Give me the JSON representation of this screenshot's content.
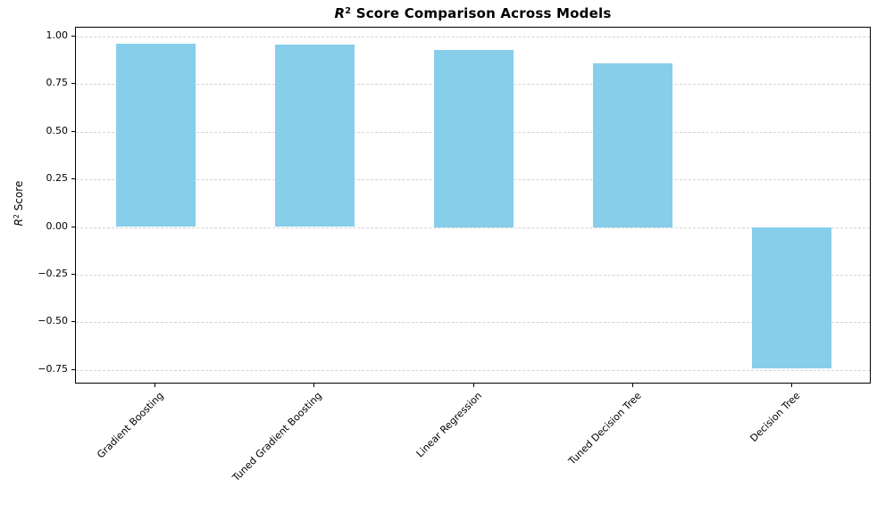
{
  "chart_data": {
    "type": "bar",
    "title": "R² Score Comparison Across Models",
    "title_parts": {
      "var": "R",
      "sup": "2",
      "rest": " Score Comparison Across Models"
    },
    "ylabel": "R² Score",
    "ylabel_parts": {
      "var": "R",
      "sup": "2",
      "rest": " Score"
    },
    "xlabel": "",
    "categories": [
      "Gradient Boosting",
      "Tuned Gradient Boosting",
      "Linear Regression",
      "Tuned Decision Tree",
      "Decision Tree"
    ],
    "values": [
      0.96,
      0.955,
      0.93,
      0.86,
      -0.74
    ],
    "yticks": [
      1.0,
      0.75,
      0.5,
      0.25,
      0.0,
      -0.25,
      -0.5,
      -0.75
    ],
    "ytick_labels": [
      "1.00",
      "0.75",
      "0.50",
      "0.25",
      "0.00",
      "−0.25",
      "−0.50",
      "−0.75"
    ],
    "ylim": [
      -0.825,
      1.045
    ],
    "bar_color": "#87ceeb",
    "bar_width_fraction": 0.5,
    "x_tick_rotation": 45,
    "grid": {
      "axis": "y",
      "style": "dashed",
      "color": "#d3d3d3"
    },
    "background": "#ffffff",
    "legend": "none"
  }
}
